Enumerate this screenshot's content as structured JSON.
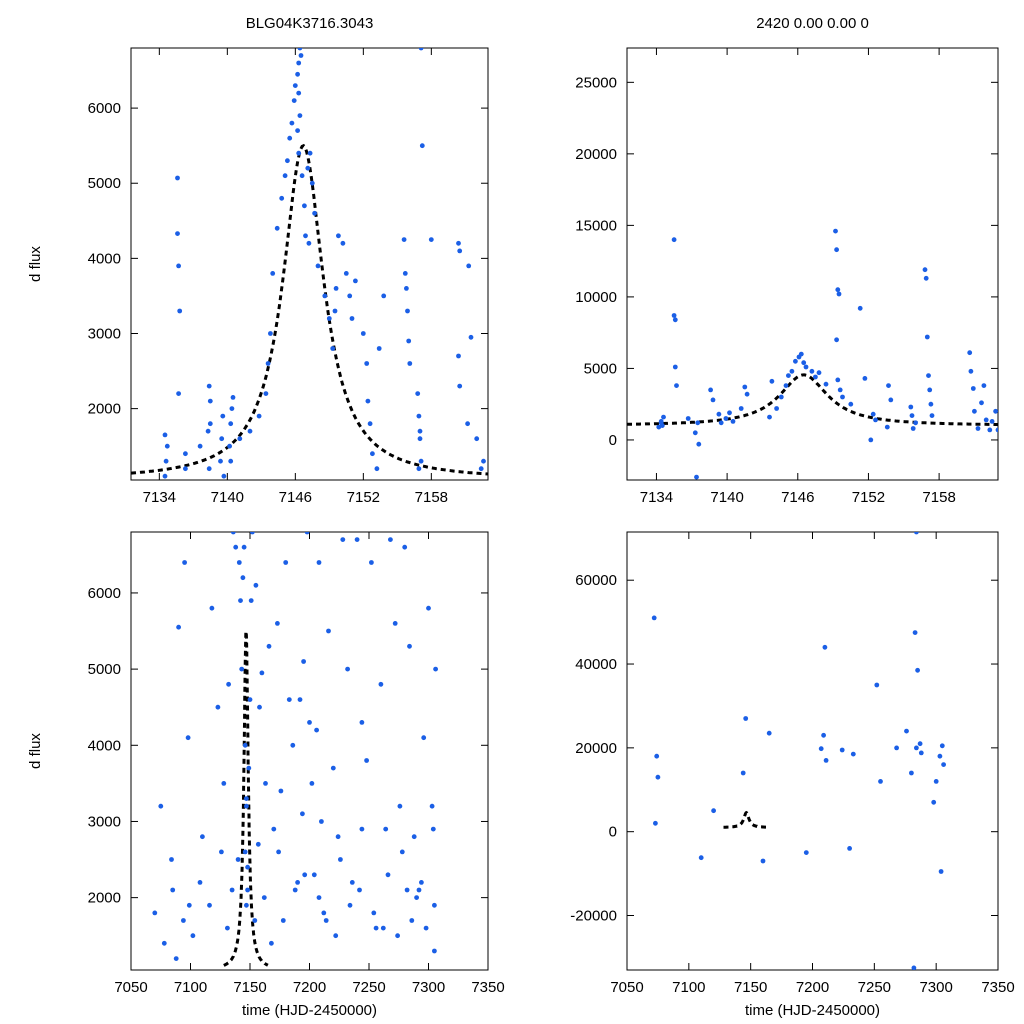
{
  "colors": {
    "points": "#1b5fe6",
    "model": "#000000",
    "frame": "#000000"
  },
  "chart_data": [
    {
      "type": "scatter",
      "title": "BLG04K3716.3043",
      "xlabel": "",
      "ylabel": "d flux",
      "xlim": [
        7131.5,
        7163.0
      ],
      "ylim": [
        1050,
        6800
      ],
      "xticks": [
        7134,
        7140,
        7146,
        7152,
        7158
      ],
      "xtick_labels": [
        "7134",
        "7140",
        "7146",
        "7152",
        "7158"
      ],
      "yticks": [
        2000,
        3000,
        4000,
        5000,
        6000
      ],
      "ytick_labels": [
        "2000",
        "3000",
        "4000",
        "5000",
        "6000"
      ],
      "model": {
        "t0": 7146.7,
        "peak": 5500,
        "base": 1050,
        "tau": 2.2,
        "t_from": 7131.5,
        "t_to": 7163.0
      },
      "series": [
        {
          "name": "data",
          "style": "points",
          "x": [
            7134.5,
            7134.6,
            7134.7,
            7134.5,
            7135.6,
            7135.6,
            7135.7,
            7135.8,
            7135.7,
            7136.3,
            7136.3,
            7137.6,
            7138.3,
            7138.4,
            7138.5,
            7138.5,
            7138.4,
            7139.4,
            7139.5,
            7139.6,
            7139.7,
            7140.2,
            7140.3,
            7140.4,
            7140.5,
            7140.3,
            7141.1,
            7142.0,
            7142.8,
            7143.4,
            7143.6,
            7143.8,
            7144.0,
            7144.4,
            7144.8,
            7145.1,
            7145.3,
            7145.5,
            7145.7,
            7145.9,
            7146.0,
            7146.2,
            7146.3,
            7146.4,
            7146.5,
            7146.3,
            7146.4,
            7146.2,
            7146.3,
            7146.6,
            7146.8,
            7146.9,
            7147.1,
            7147.3,
            7147.5,
            7147.7,
            7147.2,
            7148.0,
            7148.6,
            7149.0,
            7149.3,
            7149.5,
            7149.6,
            7149.8,
            7150.2,
            7150.5,
            7150.8,
            7151.0,
            7151.3,
            7152.0,
            7152.3,
            7152.4,
            7152.6,
            7152.8,
            7153.2,
            7153.8,
            7153.4,
            7155.6,
            7155.7,
            7155.8,
            7155.9,
            7156.0,
            7156.1,
            7156.8,
            7156.9,
            7157.0,
            7157.1,
            7157.0,
            7156.9,
            7157.1,
            7157.2,
            7158.0,
            7160.4,
            7160.5,
            7160.4,
            7160.5,
            7161.2,
            7161.3,
            7161.5,
            7162.0,
            7162.4,
            7162.6
          ],
          "y": [
            1100,
            1300,
            1500,
            1650,
            5070,
            4330,
            3900,
            3300,
            2200,
            1200,
            1400,
            1500,
            1700,
            1200,
            2100,
            1800,
            2300,
            1300,
            1600,
            1900,
            1100,
            1500,
            1800,
            2000,
            2150,
            1300,
            1600,
            1700,
            1900,
            2200,
            2600,
            3000,
            3800,
            4400,
            4800,
            5100,
            5300,
            5600,
            5800,
            6100,
            6300,
            6450,
            6600,
            6800,
            6700,
            6200,
            5900,
            5700,
            5400,
            5100,
            4700,
            4300,
            5200,
            5400,
            5000,
            4600,
            4200,
            3900,
            3500,
            3200,
            2800,
            3300,
            3600,
            4300,
            4200,
            3800,
            3500,
            3200,
            3700,
            3000,
            2600,
            2100,
            1800,
            1400,
            1200,
            3500,
            2800,
            4250,
            3800,
            3600,
            3300,
            2900,
            2600,
            2200,
            1900,
            1600,
            1300,
            1700,
            1200,
            6800,
            5500,
            4250,
            4200,
            4100,
            2700,
            2300,
            1800,
            3900,
            2950,
            1600,
            1200,
            1300
          ]
        },
        {
          "name": "model",
          "style": "dashed-line",
          "x": [],
          "y": []
        }
      ]
    },
    {
      "type": "scatter",
      "title": "2420  0.00  0.00  0",
      "xlabel": "",
      "ylabel": "",
      "xlim": [
        7131.5,
        7163.0
      ],
      "ylim": [
        -2800,
        27400
      ],
      "xticks": [
        7134,
        7140,
        7146,
        7152,
        7158
      ],
      "xtick_labels": [
        "7134",
        "7140",
        "7146",
        "7152",
        "7158"
      ],
      "yticks": [
        0,
        5000,
        10000,
        15000,
        20000,
        25000
      ],
      "ytick_labels": [
        "0",
        "5000",
        "10000",
        "15000",
        "20000",
        "25000"
      ],
      "model": {
        "t0": 7146.5,
        "peak": 4550,
        "base": 1000,
        "tau": 2.5,
        "t_from": 7131.5,
        "t_to": 7163.0
      },
      "series": [
        {
          "name": "data",
          "style": "points",
          "x": [
            7134.2,
            7134.4,
            7134.6,
            7134.5,
            7134.4,
            7135.5,
            7135.6,
            7135.5,
            7135.6,
            7135.7,
            7136.7,
            7137.4,
            7137.6,
            7137.3,
            7137.5,
            7138.6,
            7138.8,
            7139.3,
            7139.5,
            7139.9,
            7140.2,
            7140.5,
            7141.2,
            7141.5,
            7141.7,
            7143.6,
            7143.8,
            7144.2,
            7144.6,
            7145.0,
            7145.2,
            7145.5,
            7145.8,
            7146.1,
            7146.3,
            7146.5,
            7146.7,
            7147.2,
            7147.5,
            7147.8,
            7148.4,
            7149.2,
            7149.3,
            7149.4,
            7149.5,
            7149.3,
            7149.4,
            7149.6,
            7149.8,
            7150.5,
            7151.3,
            7151.7,
            7152.4,
            7152.6,
            7152.2,
            7153.7,
            7153.9,
            7153.6,
            7155.6,
            7155.7,
            7155.8,
            7156.0,
            7156.8,
            7156.9,
            7157.0,
            7157.1,
            7157.2,
            7157.3,
            7157.4,
            7160.6,
            7160.7,
            7160.9,
            7161.0,
            7161.3,
            7161.6,
            7161.8,
            7162.0,
            7162.3,
            7162.5,
            7162.8,
            7163.0
          ],
          "y": [
            900,
            1300,
            1600,
            1000,
            1200,
            14000,
            8400,
            8700,
            5100,
            3800,
            1500,
            -2600,
            -300,
            500,
            1200,
            3500,
            2800,
            1800,
            1200,
            1500,
            1900,
            1300,
            2200,
            3700,
            3200,
            1600,
            4100,
            2200,
            3000,
            3800,
            4500,
            4800,
            5500,
            5800,
            6000,
            5400,
            5100,
            4800,
            4400,
            4700,
            3900,
            14600,
            13300,
            10500,
            10200,
            7000,
            4200,
            3500,
            3000,
            2500,
            9200,
            4300,
            1800,
            1400,
            0,
            3800,
            2800,
            900,
            2300,
            1700,
            800,
            1200,
            11900,
            11300,
            7200,
            4500,
            3500,
            2500,
            1700,
            6100,
            4800,
            3600,
            2000,
            800,
            2600,
            3800,
            1400,
            700,
            1300,
            2000,
            700
          ]
        },
        {
          "name": "model",
          "style": "dashed-line",
          "x": [],
          "y": []
        }
      ]
    },
    {
      "type": "scatter",
      "title": "",
      "xlabel": "time (HJD-2450000)",
      "ylabel": "d flux",
      "xlim": [
        7050,
        7350
      ],
      "ylim": [
        1050,
        6800
      ],
      "xticks": [
        7050,
        7100,
        7150,
        7200,
        7250,
        7300,
        7350
      ],
      "xtick_labels": [
        "7050",
        "7100",
        "7150",
        "7200",
        "7250",
        "7300",
        "7350"
      ],
      "yticks": [
        2000,
        3000,
        4000,
        5000,
        6000
      ],
      "ytick_labels": [
        "2000",
        "3000",
        "4000",
        "5000",
        "6000"
      ],
      "model": {
        "t0": 7146.7,
        "peak": 5500,
        "base": 1050,
        "tau": 2.2,
        "t_from": 7128,
        "t_to": 7165
      },
      "series": [
        {
          "name": "data",
          "style": "points",
          "x": [
            7070,
            7075,
            7090,
            7095,
            7088,
            7098,
            7085,
            7102,
            7110,
            7118,
            7123,
            7128,
            7132,
            7136,
            7138,
            7140,
            7141,
            7142,
            7143,
            7144,
            7145,
            7146,
            7146,
            7147,
            7147,
            7148,
            7148,
            7149,
            7150,
            7151,
            7152,
            7155,
            7158,
            7160,
            7163,
            7166,
            7170,
            7173,
            7176,
            7180,
            7183,
            7186,
            7190,
            7192,
            7195,
            7198,
            7200,
            7202,
            7204,
            7206,
            7208,
            7210,
            7212,
            7216,
            7220,
            7224,
            7228,
            7232,
            7236,
            7240,
            7244,
            7248,
            7252,
            7256,
            7260,
            7264,
            7268,
            7272,
            7276,
            7280,
            7284,
            7288,
            7292,
            7296,
            7300,
            7303,
            7305,
            7306,
            7078,
            7084,
            7094,
            7108,
            7116,
            7126,
            7154,
            7162,
            7168,
            7178,
            7188,
            7196,
            7214,
            7222,
            7234,
            7242,
            7254,
            7262,
            7274,
            7282,
            7286,
            7290,
            7298,
            7305,
            7099,
            7131,
            7135,
            7147,
            7157,
            7174,
            7194,
            7208,
            7226,
            7244,
            7266,
            7278,
            7294,
            7304
          ],
          "y": [
            1800,
            3200,
            5550,
            6400,
            1200,
            4100,
            2100,
            1500,
            2800,
            5800,
            4500,
            3500,
            4800,
            6800,
            6600,
            2500,
            6400,
            5900,
            5000,
            6200,
            6600,
            4000,
            2600,
            3200,
            1900,
            2400,
            2100,
            3700,
            4600,
            5900,
            6800,
            6100,
            4500,
            4950,
            3500,
            5300,
            2900,
            5600,
            3400,
            6400,
            4600,
            4000,
            2200,
            4600,
            5100,
            6800,
            4300,
            3500,
            2300,
            4200,
            6400,
            3000,
            1800,
            5500,
            3700,
            2800,
            6700,
            5000,
            2200,
            6700,
            4300,
            3800,
            6400,
            1600,
            4800,
            2900,
            6700,
            5600,
            3200,
            6600,
            5300,
            2800,
            2100,
            4100,
            5800,
            3200,
            1900,
            5000,
            1400,
            2500,
            1700,
            2200,
            1900,
            2600,
            1700,
            2000,
            1400,
            1700,
            2100,
            2300,
            1700,
            1500,
            1900,
            2100,
            1800,
            1600,
            1500,
            2100,
            1700,
            2000,
            1600,
            1300,
            1900,
            1600,
            2100,
            3300,
            2700,
            2600,
            3100,
            2000,
            2500,
            2900,
            2300,
            2600,
            2200,
            2900
          ]
        },
        {
          "name": "model",
          "style": "dashed-line",
          "x": [],
          "y": []
        }
      ]
    },
    {
      "type": "scatter",
      "title": "",
      "xlabel": "time (HJD-2450000)",
      "ylabel": "",
      "xlim": [
        7050,
        7350
      ],
      "ylim": [
        -33000,
        71500
      ],
      "xticks": [
        7050,
        7100,
        7150,
        7200,
        7250,
        7300,
        7350
      ],
      "xtick_labels": [
        "7050",
        "7100",
        "7150",
        "7200",
        "7250",
        "7300",
        "7350"
      ],
      "yticks": [
        -20000,
        0,
        20000,
        40000,
        60000
      ],
      "ytick_labels": [
        "-20000",
        "0",
        "20000",
        "40000",
        "60000"
      ],
      "model": {
        "t0": 7146.5,
        "peak": 4550,
        "base": 1000,
        "tau": 2.5,
        "t_from": 7128,
        "t_to": 7165
      },
      "series": [
        {
          "name": "data",
          "style": "points",
          "x": [
            7072,
            7073,
            7074,
            7075,
            7146,
            7144,
            7165,
            7210,
            7209,
            7211,
            7207,
            7224,
            7233,
            7252,
            7255,
            7268,
            7276,
            7280,
            7284,
            7283,
            7285,
            7284,
            7282,
            7287,
            7288,
            7304,
            7305,
            7303,
            7306,
            7110,
            7120,
            7160,
            7195,
            7230,
            7298,
            7300
          ],
          "y": [
            51000,
            2000,
            18000,
            13000,
            27000,
            14000,
            23500,
            44000,
            23000,
            17000,
            19800,
            19500,
            18500,
            35000,
            12000,
            20000,
            24000,
            14000,
            71500,
            47500,
            38500,
            20000,
            -32500,
            21000,
            18800,
            -9500,
            20500,
            18000,
            16000,
            -6200,
            5000,
            -7000,
            -5000,
            -4000,
            7000,
            12000
          ]
        },
        {
          "name": "model",
          "style": "dashed-line",
          "x": [],
          "y": []
        }
      ]
    }
  ]
}
